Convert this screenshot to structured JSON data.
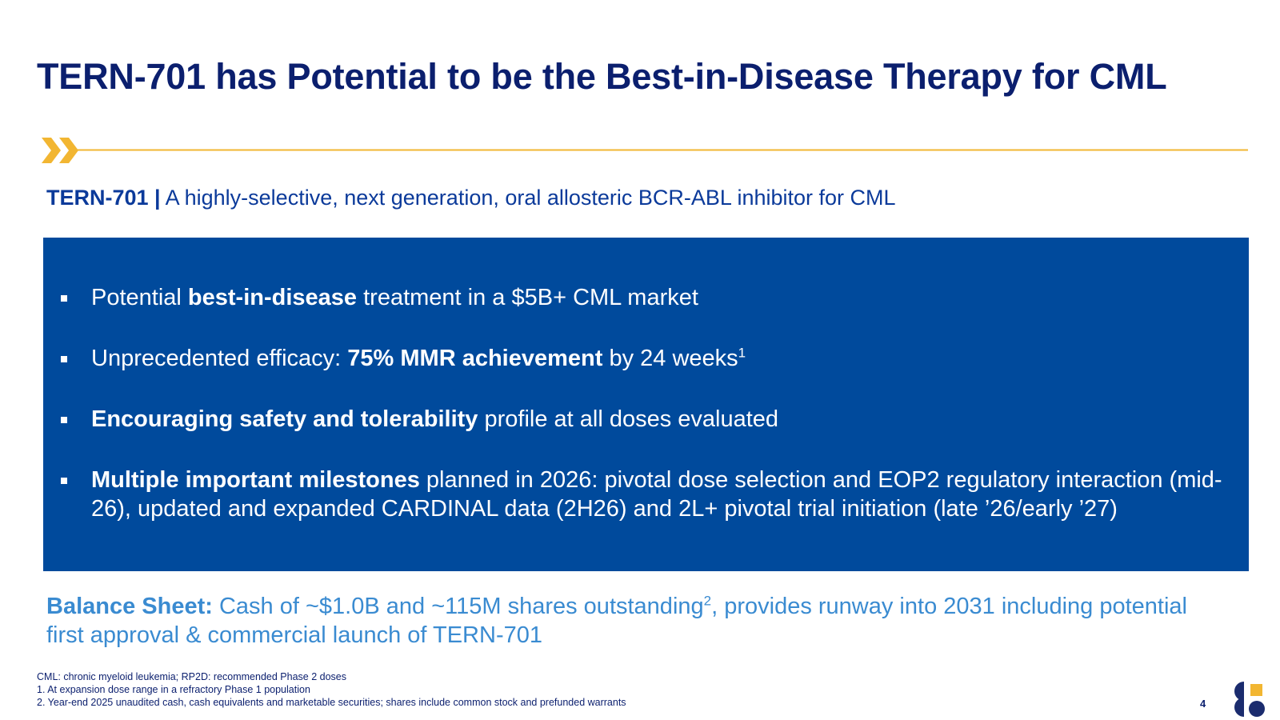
{
  "slide": {
    "title": "TERN-701 has Potential to be the Best-in-Disease Therapy for CML",
    "subtitle_lead": "TERN-701 |",
    "subtitle_text": " A highly-selective, next generation, oral allosteric BCR-ABL inhibitor for CML",
    "bullets": [
      {
        "pre": "Potential ",
        "bold": "best-in-disease",
        "post": " treatment in a $5B+ CML market",
        "sup": ""
      },
      {
        "pre": "Unprecedented efficacy: ",
        "bold": "75% MMR achievement",
        "post": " by 24 weeks",
        "sup": "1"
      },
      {
        "pre": "",
        "bold": "Encouraging safety and tolerability",
        "post": " profile at all doses evaluated",
        "sup": ""
      },
      {
        "pre": "",
        "bold": "Multiple important milestones",
        "post": " planned in 2026: pivotal dose selection and EOP2 regulatory interaction (mid-26), updated and expanded CARDINAL data (2H26) and 2L+ pivotal trial initiation (late ’26/early ’27)",
        "sup": ""
      }
    ],
    "balance": {
      "lead": "Balance Sheet:",
      "text_a": " Cash of ~$1.0B and ~115M shares outstanding",
      "sup": "2",
      "text_b": ", provides runway into 2031 including potential first approval & commercial launch of TERN-701"
    },
    "footnotes": [
      "CML: chronic myeloid leukemia; RP2D: recommended Phase 2 doses",
      "1. At expansion dose range in a refractory Phase 1 population",
      "2. Year-end 2025 unaudited cash, cash equivalents and marketable securities; shares include common stock and prefunded warrants"
    ],
    "page_number": "4"
  },
  "colors": {
    "title": "#0b1f6e",
    "subtitle": "#0b3a9a",
    "panel": "#004a9c",
    "accent_gold": "#f2b632",
    "balance": "#3a8bd1"
  },
  "icons": {
    "divider": "double-chevron-icon",
    "logo": "terns-logo-icon"
  }
}
